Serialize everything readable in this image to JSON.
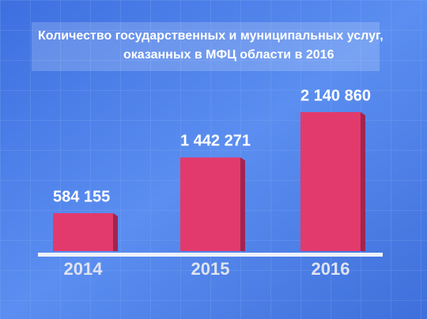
{
  "chart_data": {
    "type": "bar",
    "title": [
      "Количество государственных и муниципальных услуг,",
      "оказанных в МФЦ области в 2016"
    ],
    "categories": [
      "2014",
      "2015",
      "2016"
    ],
    "values": [
      584155,
      1442271,
      2140860
    ],
    "value_labels": [
      "584 155",
      "1 442 271",
      "2 140 860"
    ],
    "color": "#e23a6c"
  }
}
